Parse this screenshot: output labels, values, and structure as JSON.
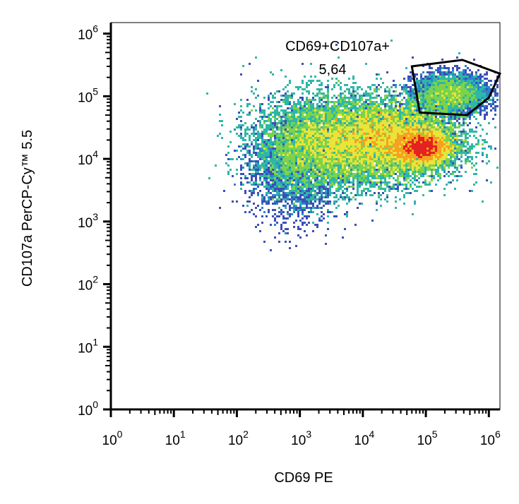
{
  "chart_data": {
    "type": "scatter",
    "subtype": "flow-cytometry-density-plot",
    "xlabel": "CD69 PE",
    "ylabel": "CD107a PerCP-Cy™ 5.5",
    "x_scale": "log",
    "y_scale": "log",
    "xlim": [
      1,
      1500000
    ],
    "ylim": [
      1,
      1500000
    ],
    "x_ticks": [
      {
        "base": "10",
        "exp": "0",
        "value": 1
      },
      {
        "base": "10",
        "exp": "1",
        "value": 10
      },
      {
        "base": "10",
        "exp": "2",
        "value": 100
      },
      {
        "base": "10",
        "exp": "3",
        "value": 1000
      },
      {
        "base": "10",
        "exp": "4",
        "value": 10000
      },
      {
        "base": "10",
        "exp": "5",
        "value": 100000
      },
      {
        "base": "10",
        "exp": "6",
        "value": 1000000
      }
    ],
    "y_ticks": [
      {
        "base": "10",
        "exp": "0",
        "value": 1
      },
      {
        "base": "10",
        "exp": "1",
        "value": 10
      },
      {
        "base": "10",
        "exp": "2",
        "value": 100
      },
      {
        "base": "10",
        "exp": "3",
        "value": 1000
      },
      {
        "base": "10",
        "exp": "4",
        "value": 10000
      },
      {
        "base": "10",
        "exp": "5",
        "value": 100000
      },
      {
        "base": "10",
        "exp": "6",
        "value": 1000000
      }
    ],
    "gate": {
      "name": "CD69+CD107a+",
      "percent": "5,64",
      "polygon": [
        [
          60000,
          300000
        ],
        [
          380000,
          380000
        ],
        [
          1500000,
          230000
        ],
        [
          1000000,
          95000
        ],
        [
          450000,
          50000
        ],
        [
          80000,
          55000
        ]
      ]
    },
    "density_populations": [
      {
        "cx": 30000,
        "cy": 20000,
        "sx_log": 0.55,
        "sy_log": 0.32,
        "weight": 0.42
      },
      {
        "cx": 90000,
        "cy": 15000,
        "sx_log": 0.22,
        "sy_log": 0.13,
        "weight": 0.22
      },
      {
        "cx": 2500,
        "cy": 18000,
        "sx_log": 0.55,
        "sy_log": 0.38,
        "weight": 0.26
      },
      {
        "cx": 250000,
        "cy": 110000,
        "sx_log": 0.3,
        "sy_log": 0.16,
        "weight": 0.06
      },
      {
        "cx": 800,
        "cy": 8000,
        "sx_log": 0.35,
        "sy_log": 0.45,
        "weight": 0.04
      }
    ],
    "colormap": [
      "#dde0ee",
      "#3a4fb8",
      "#2a86c8",
      "#2fb7a6",
      "#7cd34a",
      "#e9e43a",
      "#f6a11f",
      "#e4221f"
    ],
    "grid": false,
    "legend": "none"
  }
}
